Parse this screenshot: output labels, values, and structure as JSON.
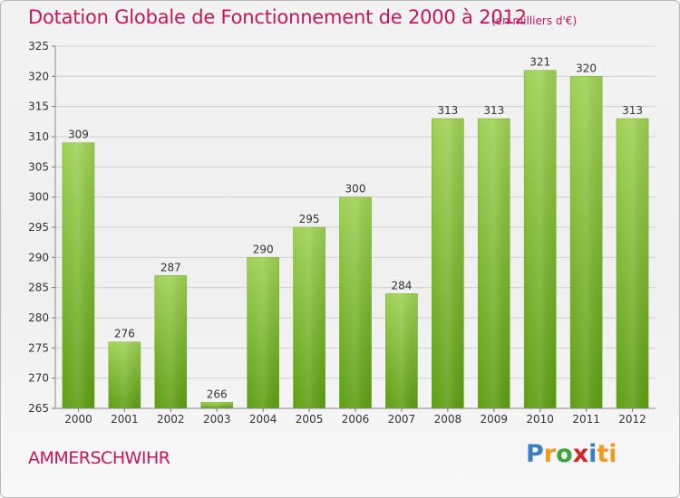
{
  "title": "Dotation Globale de Fonctionnement de 2000 à 2012",
  "subtitle": "(en milliers d'€)",
  "commune": "AMMERSCHWIHR",
  "logo": {
    "letters": [
      "P",
      "r",
      "o",
      "x",
      "i",
      "ti"
    ]
  },
  "colors": {
    "title": "#c8155a",
    "bar_top": "#9fd155",
    "bar_bottom": "#5d9e12",
    "grid": "#d0d0d0"
  },
  "chart_data": {
    "type": "bar",
    "categories": [
      "2000",
      "2001",
      "2002",
      "2003",
      "2004",
      "2005",
      "2006",
      "2007",
      "2008",
      "2009",
      "2010",
      "2011",
      "2012"
    ],
    "values": [
      309,
      276,
      287,
      266,
      290,
      295,
      300,
      284,
      313,
      313,
      321,
      320,
      313
    ],
    "ylim": [
      265,
      325
    ],
    "yticks": [
      265,
      270,
      275,
      280,
      285,
      290,
      295,
      300,
      305,
      310,
      315,
      320,
      325
    ],
    "grid": true,
    "title": "Dotation Globale de Fonctionnement de 2000 à 2012",
    "xlabel": "",
    "ylabel": ""
  }
}
